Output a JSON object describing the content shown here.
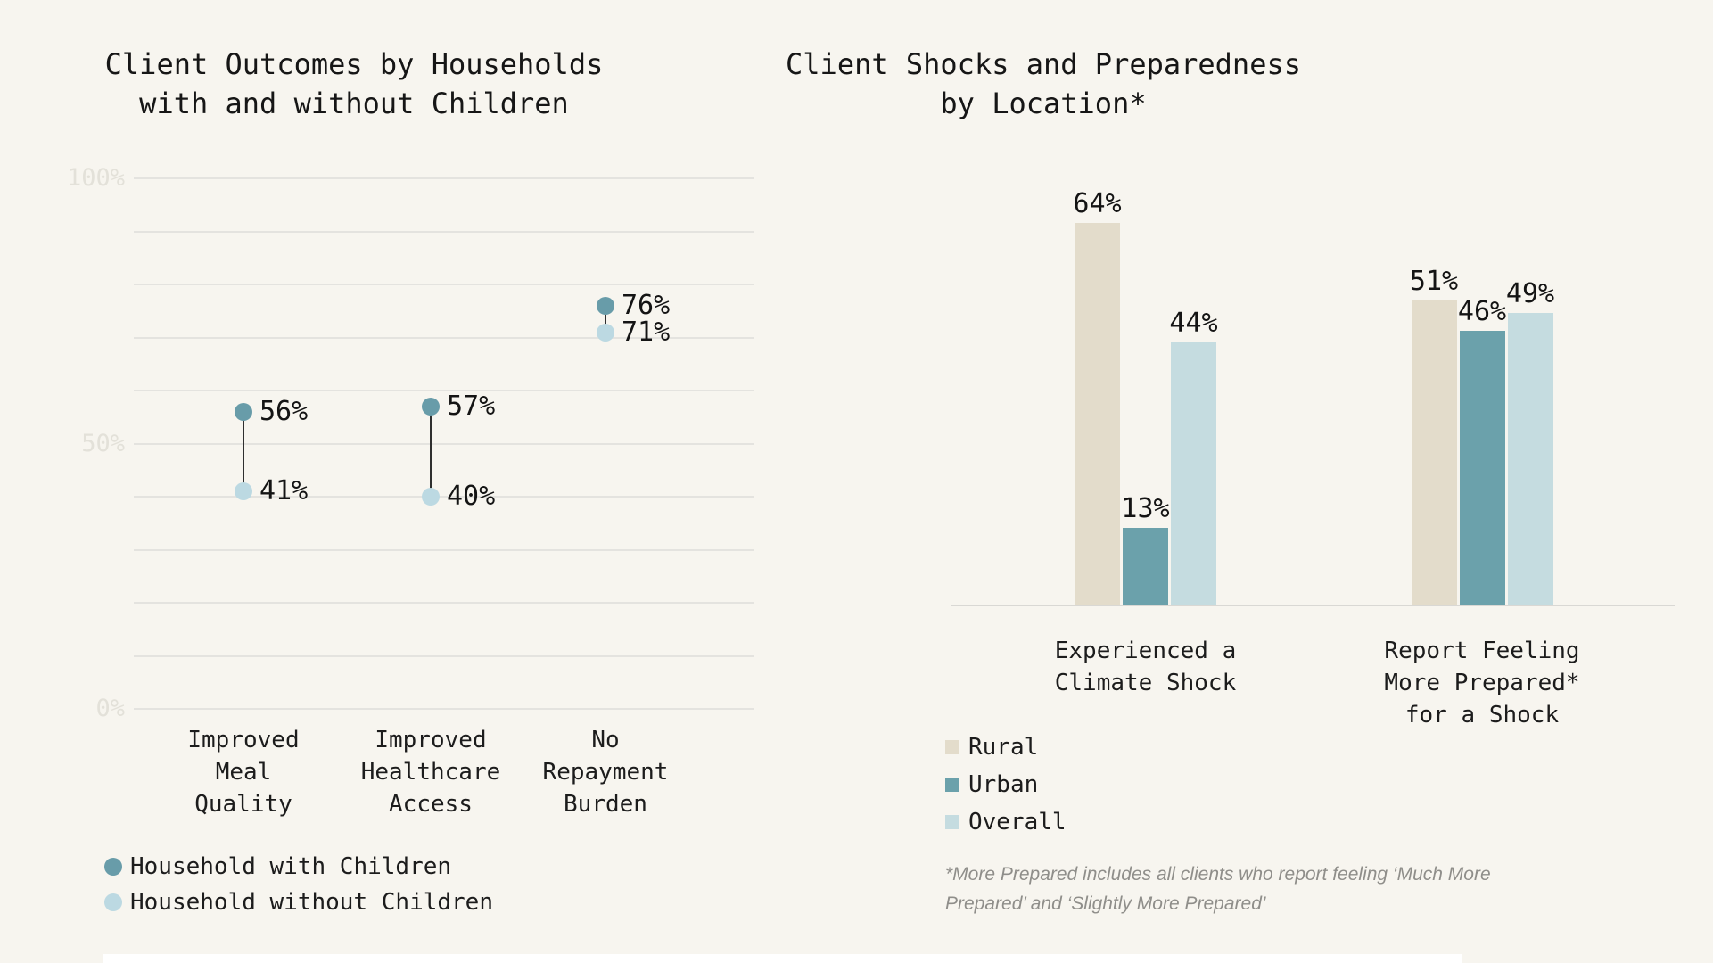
{
  "page": {
    "background": "#f7f5ef"
  },
  "colors": {
    "teal_dark": "#689ca9",
    "teal_light": "#bcd9e2",
    "rural_beige": "#e3dccb",
    "urban_teal": "#6ba1ab",
    "overall_blue": "#c5dce0",
    "gridline": "#e4e3df",
    "axis_line": "#d9d8d4",
    "tick_label": "#e3e1d9",
    "text": "#1c1c1c",
    "footnote": "#8f8e8a",
    "connector": "#2f2f2f"
  },
  "chart_data": [
    {
      "type": "scatter",
      "subtype": "dumbbell-dot-plot",
      "title": "Client Outcomes by Households with and without Children",
      "title_lines": [
        "Client Outcomes by Households",
        "with and without Children"
      ],
      "categories": [
        "Improved Meal Quality",
        "Improved Healthcare Access",
        "No Repayment Burden"
      ],
      "category_lines": [
        [
          "Improved",
          "Meal",
          "Quality"
        ],
        [
          "Improved",
          "Healthcare",
          "Access"
        ],
        [
          "No",
          "Repayment",
          "Burden"
        ]
      ],
      "series": [
        {
          "name": "Household with Children",
          "color_key": "teal_dark",
          "values": [
            56,
            57,
            76
          ],
          "labels": [
            "56%",
            "57%",
            "76%"
          ]
        },
        {
          "name": "Household without Children",
          "color_key": "teal_light",
          "values": [
            41,
            40,
            71
          ],
          "labels": [
            "41%",
            "40%",
            "71%"
          ]
        }
      ],
      "ylim": [
        0,
        100
      ],
      "grid_step_percent": 10,
      "grid_on": true,
      "yticks": [
        {
          "value": 100,
          "label": "100%"
        },
        {
          "value": 50,
          "label": "50%"
        },
        {
          "value": 0,
          "label": "0%"
        }
      ],
      "legend_position": "bottom-left"
    },
    {
      "type": "bar",
      "subtype": "grouped-vertical",
      "title": "Client Shocks and Preparedness by Location*",
      "title_lines": [
        "Client Shocks and Preparedness",
        "by Location*"
      ],
      "categories": [
        "Experienced a Climate Shock",
        "Report Feeling More Prepared* for a Shock"
      ],
      "category_lines": [
        [
          "Experienced a",
          "Climate Shock"
        ],
        [
          "Report Feeling",
          "More Prepared*",
          "for a Shock"
        ]
      ],
      "series": [
        {
          "name": "Rural",
          "color_key": "rural_beige",
          "values": [
            64,
            51
          ],
          "labels": [
            "64%",
            "51%"
          ]
        },
        {
          "name": "Urban",
          "color_key": "urban_teal",
          "values": [
            13,
            46
          ],
          "labels": [
            "13%",
            "46%"
          ]
        },
        {
          "name": "Overall",
          "color_key": "overall_blue",
          "values": [
            44,
            49
          ],
          "labels": [
            "44%",
            "49%"
          ]
        }
      ],
      "ylim": [
        0,
        100
      ],
      "grid_on": false,
      "legend_position": "bottom-left",
      "footnote": "*More Prepared includes all clients who report feeling ‘Much More Prepared’ and ‘Slightly More Prepared’",
      "footnote_lines": [
        "*More Prepared includes all clients who report feeling ‘Much More",
        "Prepared’ and ‘Slightly More Prepared’"
      ]
    }
  ]
}
